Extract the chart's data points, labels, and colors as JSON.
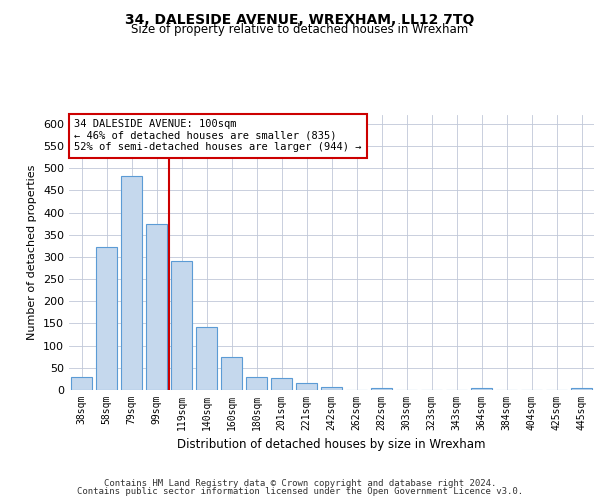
{
  "title": "34, DALESIDE AVENUE, WREXHAM, LL12 7TQ",
  "subtitle": "Size of property relative to detached houses in Wrexham",
  "xlabel": "Distribution of detached houses by size in Wrexham",
  "ylabel": "Number of detached properties",
  "categories": [
    "38sqm",
    "58sqm",
    "79sqm",
    "99sqm",
    "119sqm",
    "140sqm",
    "160sqm",
    "180sqm",
    "201sqm",
    "221sqm",
    "242sqm",
    "262sqm",
    "282sqm",
    "303sqm",
    "323sqm",
    "343sqm",
    "364sqm",
    "384sqm",
    "404sqm",
    "425sqm",
    "445sqm"
  ],
  "values": [
    30,
    322,
    483,
    375,
    290,
    143,
    75,
    30,
    27,
    15,
    7,
    0,
    5,
    0,
    0,
    0,
    5,
    0,
    0,
    0,
    5
  ],
  "bar_color": "#c5d8ed",
  "bar_edge_color": "#5b9bd5",
  "property_line_index": 3,
  "annotation_line1": "34 DALESIDE AVENUE: 100sqm",
  "annotation_line2": "← 46% of detached houses are smaller (835)",
  "annotation_line3": "52% of semi-detached houses are larger (944) →",
  "annotation_box_facecolor": "#ffffff",
  "annotation_box_edgecolor": "#cc0000",
  "property_line_color": "#cc0000",
  "ylim": [
    0,
    620
  ],
  "yticks": [
    0,
    50,
    100,
    150,
    200,
    250,
    300,
    350,
    400,
    450,
    500,
    550,
    600
  ],
  "footer_line1": "Contains HM Land Registry data © Crown copyright and database right 2024.",
  "footer_line2": "Contains public sector information licensed under the Open Government Licence v3.0.",
  "background_color": "#ffffff",
  "grid_color": "#c0c8d8",
  "title_fontsize": 10,
  "subtitle_fontsize": 8.5,
  "ylabel_fontsize": 8,
  "xlabel_fontsize": 8.5,
  "tick_fontsize": 7,
  "footer_fontsize": 6.5,
  "annotation_fontsize": 7.5
}
